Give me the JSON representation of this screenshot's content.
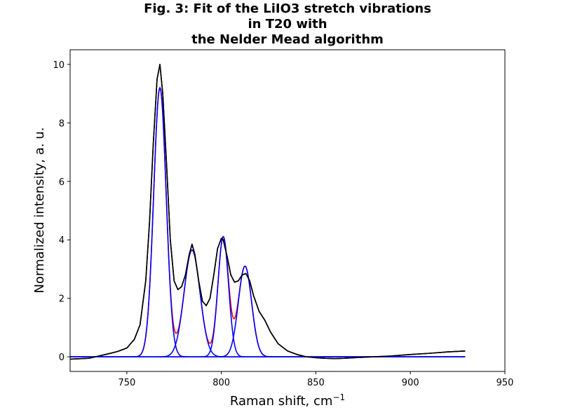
{
  "chart_data": {
    "type": "line",
    "title_lines": [
      "Fig. 3: Fit of the LiIO3 stretch vibrations",
      "in T20 with",
      "the Nelder Mead algorithm"
    ],
    "xlabel_text": "Raman shift, cm",
    "xlabel_sup": "−1",
    "ylabel": "Normalized intensity, a. u.",
    "xlim": [
      720,
      950
    ],
    "ylim": [
      -0.5,
      10.5
    ],
    "xticks": [
      750,
      800,
      850,
      900,
      950
    ],
    "yticks": [
      0,
      2,
      4,
      6,
      8,
      10
    ],
    "grid": false,
    "legend": false,
    "colors": {
      "data": "#000000",
      "fit": "#ff0000",
      "components": "#0000ff"
    },
    "components": [
      {
        "center": 767.5,
        "amplitude": 9.2,
        "sigma": 3.3
      },
      {
        "center": 784.5,
        "amplitude": 3.65,
        "sigma": 4.2
      },
      {
        "center": 801.0,
        "amplitude": 4.1,
        "sigma": 2.8
      },
      {
        "center": 812.5,
        "amplitude": 3.1,
        "sigma": 3.5
      }
    ],
    "measured_series": {
      "x": [
        720,
        730,
        740,
        745,
        750,
        754,
        757,
        760,
        762,
        764,
        766,
        767.5,
        769,
        771,
        773,
        775,
        777,
        779,
        781,
        783,
        784.5,
        786,
        788,
        790,
        792,
        794,
        796,
        798,
        800,
        801,
        803,
        805,
        807,
        809,
        811,
        813,
        815,
        817,
        820,
        823,
        826,
        830,
        835,
        840,
        845,
        850,
        855,
        860,
        865,
        870,
        880,
        890,
        900,
        910,
        920,
        929
      ],
      "y": [
        -0.08,
        -0.05,
        0.1,
        0.18,
        0.3,
        0.6,
        1.1,
        2.6,
        4.6,
        7.3,
        9.5,
        10.0,
        9.0,
        6.6,
        4.0,
        2.6,
        2.3,
        2.4,
        2.8,
        3.5,
        3.85,
        3.5,
        2.6,
        1.9,
        1.75,
        2.0,
        2.8,
        3.7,
        4.05,
        4.0,
        3.45,
        2.8,
        2.55,
        2.6,
        2.8,
        2.85,
        2.6,
        2.1,
        1.55,
        1.25,
        0.85,
        0.45,
        0.2,
        0.08,
        0.0,
        -0.03,
        -0.05,
        -0.06,
        -0.05,
        -0.03,
        0.0,
        0.03,
        0.08,
        0.12,
        0.17,
        0.2
      ]
    }
  }
}
